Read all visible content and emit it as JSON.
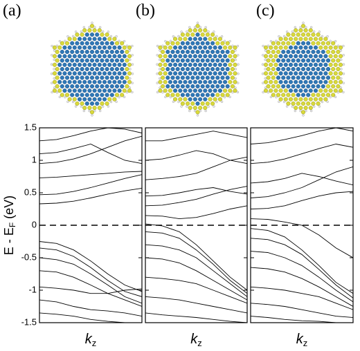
{
  "chart_data": [
    {
      "type": "line",
      "title": "(a)",
      "ylabel": {
        "main": "E - E",
        "sub": "F",
        "unit": "(eV)"
      },
      "xlabel": {
        "main": "k",
        "sub": "z"
      },
      "categories": [
        null,
        null,
        null,
        null,
        null,
        null,
        null
      ],
      "color": "#000000",
      "zero_line": true,
      "ylim": [
        -1.5,
        1.5
      ],
      "yticks": [
        -1.5,
        -1,
        -0.5,
        0,
        0.5,
        1,
        1.5
      ],
      "series": [
        {
          "values": [
            0.33,
            0.34,
            0.37,
            0.42,
            0.48,
            0.53,
            0.57
          ]
        },
        {
          "values": [
            0.47,
            0.48,
            0.52,
            0.58,
            0.65,
            0.72,
            0.78
          ]
        },
        {
          "values": [
            0.73,
            0.74,
            0.76,
            0.78,
            0.8,
            0.82,
            0.83
          ]
        },
        {
          "values": [
            0.95,
            0.97,
            1.02,
            1.1,
            1.2,
            1.3,
            1.37
          ]
        },
        {
          "values": [
            1.1,
            1.12,
            1.18,
            1.25,
            1.12,
            1.0,
            0.95
          ]
        },
        {
          "values": [
            1.3,
            1.32,
            1.38,
            1.45,
            1.5,
            1.48,
            1.42
          ]
        },
        {
          "values": [
            -0.25,
            -0.28,
            -0.38,
            -0.55,
            -0.75,
            -0.92,
            -1.02
          ]
        },
        {
          "values": [
            -0.35,
            -0.38,
            -0.48,
            -0.65,
            -0.85,
            -1.02,
            -1.1
          ]
        },
        {
          "values": [
            -0.5,
            -0.53,
            -0.6,
            -0.75,
            -0.92,
            -1.1,
            -1.2
          ]
        },
        {
          "values": [
            -0.7,
            -0.72,
            -0.8,
            -0.92,
            -1.05,
            -1.15,
            -1.25
          ]
        },
        {
          "values": [
            -0.95,
            -0.97,
            -1.0,
            -1.05,
            -1.05,
            -1.0,
            -0.98
          ]
        },
        {
          "values": [
            -1.15,
            -1.18,
            -1.25,
            -1.3,
            -1.32,
            -1.35,
            -1.4
          ]
        },
        {
          "values": [
            -1.35,
            -1.37,
            -1.4,
            -1.45,
            -1.48,
            -1.5,
            -1.5
          ]
        }
      ]
    },
    {
      "type": "line",
      "title": "(b)",
      "xlabel": {
        "main": "k",
        "sub": "z"
      },
      "categories": [
        null,
        null,
        null,
        null,
        null,
        null,
        null
      ],
      "color": "#000000",
      "zero_line": true,
      "ylim": [
        -1.5,
        1.5
      ],
      "series": [
        {
          "values": [
            0.15,
            0.14,
            0.1,
            0.12,
            0.18,
            0.25,
            0.3
          ]
        },
        {
          "values": [
            0.02,
            -0.01,
            -0.1,
            -0.3,
            -0.55,
            -0.8,
            -1.0
          ]
        },
        {
          "values": [
            -0.1,
            -0.12,
            -0.2,
            -0.38,
            -0.6,
            -0.85,
            -1.05
          ]
        },
        {
          "values": [
            0.3,
            0.31,
            0.35,
            0.4,
            0.48,
            0.55,
            0.6
          ]
        },
        {
          "values": [
            0.45,
            0.46,
            0.5,
            0.55,
            0.58,
            0.52,
            0.48
          ]
        },
        {
          "values": [
            0.7,
            0.72,
            0.75,
            0.8,
            0.9,
            1.0,
            1.05
          ]
        },
        {
          "values": [
            1.0,
            1.02,
            1.08,
            1.15,
            1.1,
            1.0,
            0.95
          ]
        },
        {
          "values": [
            1.3,
            1.3,
            1.35,
            1.4,
            1.45,
            1.4,
            1.35
          ]
        },
        {
          "values": [
            -0.3,
            -0.32,
            -0.38,
            -0.5,
            -0.7,
            -0.9,
            -1.1
          ]
        },
        {
          "values": [
            -0.5,
            -0.52,
            -0.58,
            -0.7,
            -0.85,
            -1.0,
            -1.15
          ]
        },
        {
          "values": [
            -0.8,
            -0.82,
            -0.85,
            -0.9,
            -1.0,
            -1.1,
            -1.2
          ]
        },
        {
          "values": [
            -1.1,
            -1.12,
            -1.15,
            -1.2,
            -1.25,
            -1.3,
            -1.35
          ]
        },
        {
          "values": [
            -1.35,
            -1.38,
            -1.4,
            -1.42,
            -1.45,
            -1.48,
            -1.5
          ]
        }
      ]
    },
    {
      "type": "line",
      "title": "(c)",
      "xlabel": {
        "main": "k",
        "sub": "z"
      },
      "categories": [
        null,
        null,
        null,
        null,
        null,
        null,
        null
      ],
      "color": "#000000",
      "zero_line": true,
      "ylim": [
        -1.5,
        1.5
      ],
      "series": [
        {
          "values": [
            0.1,
            0.09,
            0.05,
            0.0,
            -0.15,
            -0.35,
            -0.5
          ]
        },
        {
          "values": [
            0.25,
            0.26,
            0.3,
            0.38,
            0.45,
            0.5,
            0.52
          ]
        },
        {
          "values": [
            0.42,
            0.44,
            0.5,
            0.58,
            0.7,
            0.82,
            0.9
          ]
        },
        {
          "values": [
            0.65,
            0.67,
            0.72,
            0.8,
            0.75,
            0.68,
            0.62
          ]
        },
        {
          "values": [
            0.95,
            0.97,
            1.02,
            1.1,
            1.18,
            1.25,
            1.2
          ]
        },
        {
          "values": [
            1.25,
            1.27,
            1.32,
            1.38,
            1.45,
            1.5,
            1.45
          ]
        },
        {
          "values": [
            -0.05,
            -0.08,
            -0.18,
            -0.38,
            -0.62,
            -0.88,
            -1.05
          ]
        },
        {
          "values": [
            -0.2,
            -0.22,
            -0.3,
            -0.45,
            -0.68,
            -0.92,
            -1.12
          ]
        },
        {
          "values": [
            -0.4,
            -0.42,
            -0.5,
            -0.62,
            -0.8,
            -1.0,
            -1.18
          ]
        },
        {
          "values": [
            -0.65,
            -0.67,
            -0.72,
            -0.82,
            -0.95,
            -1.1,
            -1.25
          ]
        },
        {
          "values": [
            -0.95,
            -0.97,
            -1.0,
            -1.05,
            -1.1,
            -1.2,
            -1.3
          ]
        },
        {
          "values": [
            -1.2,
            -1.22,
            -1.25,
            -1.3,
            -1.35,
            -1.4,
            -1.42
          ]
        },
        {
          "values": [
            -1.4,
            -1.42,
            -1.45,
            -1.47,
            -1.48,
            -1.5,
            -1.5
          ]
        }
      ]
    }
  ]
}
